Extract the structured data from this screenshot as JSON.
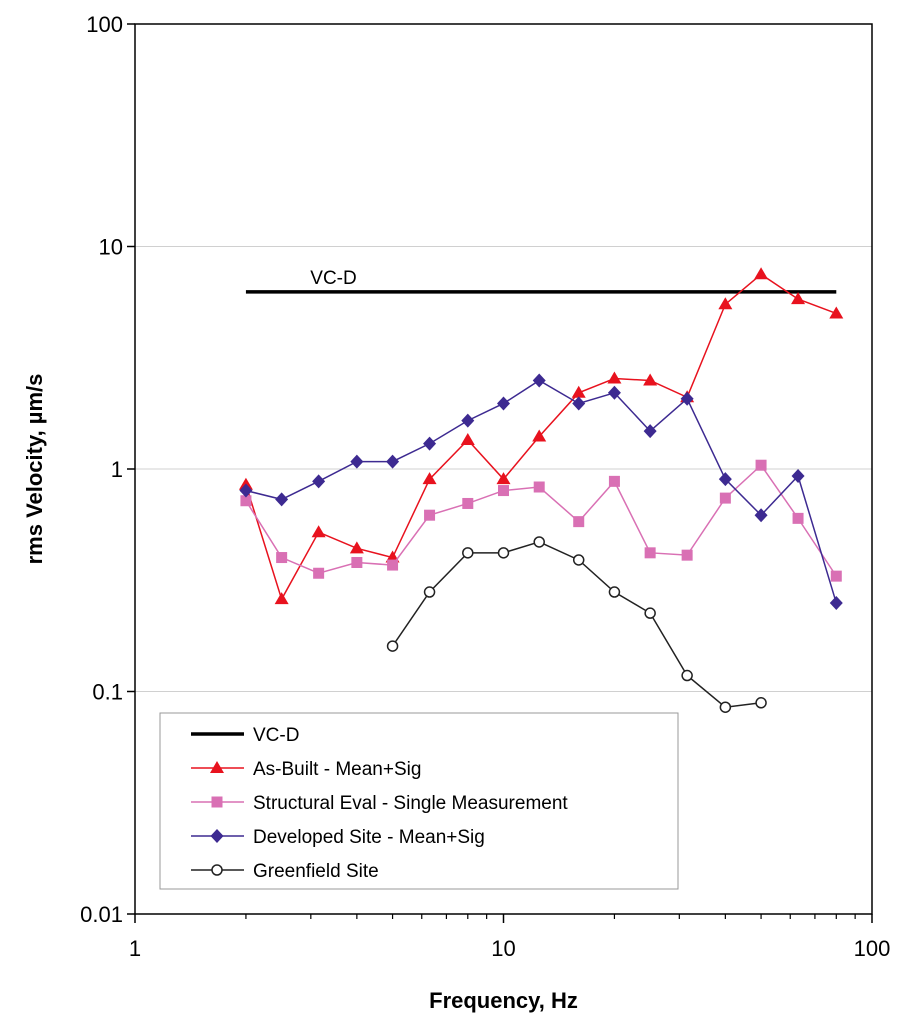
{
  "chart_data": {
    "type": "line",
    "title": "",
    "xlabel": "Frequency, Hz",
    "ylabel": "rms Velocity,  µm/s",
    "xscale": "log",
    "yscale": "log",
    "xlim": [
      1,
      100
    ],
    "ylim": [
      0.01,
      100
    ],
    "x_ticks": [
      "1",
      "10",
      "100"
    ],
    "y_ticks": [
      "0.01",
      "0.1",
      "1",
      "10",
      "100"
    ],
    "grid": "horizontal major gridlines",
    "legend_position": "bottom-left",
    "annotation": "VC-D",
    "series": [
      {
        "name": "VC-D",
        "color": "#000000",
        "marker": "none",
        "x": [
          2,
          80
        ],
        "y": [
          6.25,
          6.25
        ]
      },
      {
        "name": "As-Built - Mean+Sig",
        "color": "#e8121e",
        "marker": "triangle",
        "x": [
          2,
          2.5,
          3.15,
          4,
          5,
          6.3,
          8,
          10,
          12.5,
          16,
          20,
          25,
          31.5,
          40,
          50,
          63,
          80
        ],
        "y": [
          0.85,
          0.26,
          0.52,
          0.44,
          0.4,
          0.9,
          1.35,
          0.9,
          1.4,
          2.2,
          2.55,
          2.5,
          2.1,
          5.5,
          7.5,
          5.8,
          5.0
        ]
      },
      {
        "name": "Structural Eval - Single Measurement",
        "color": "#d970b4",
        "marker": "square",
        "x": [
          2,
          2.5,
          3.15,
          4,
          5,
          6.3,
          8,
          10,
          12.5,
          16,
          20,
          25,
          31.5,
          40,
          50,
          63,
          80
        ],
        "y": [
          0.72,
          0.4,
          0.34,
          0.38,
          0.37,
          0.62,
          0.7,
          0.8,
          0.83,
          0.58,
          0.88,
          0.42,
          0.41,
          0.74,
          1.04,
          0.6,
          0.33
        ]
      },
      {
        "name": "Developed Site - Mean+Sig",
        "color": "#3d2a91",
        "marker": "diamond",
        "x": [
          2,
          2.5,
          3.15,
          4,
          5,
          6.3,
          8,
          10,
          12.5,
          16,
          20,
          25,
          31.5,
          40,
          50,
          63,
          80
        ],
        "y": [
          0.8,
          0.73,
          0.88,
          1.08,
          1.08,
          1.3,
          1.65,
          1.97,
          2.5,
          1.97,
          2.2,
          1.48,
          2.07,
          0.9,
          0.62,
          0.93,
          0.25
        ]
      },
      {
        "name": "Greenfield Site",
        "color": "#222222",
        "marker": "open-circle",
        "x": [
          5,
          6.3,
          8,
          10,
          12.5,
          16,
          20,
          25,
          31.5,
          40,
          50
        ],
        "y": [
          0.16,
          0.28,
          0.42,
          0.42,
          0.47,
          0.39,
          0.28,
          0.225,
          0.118,
          0.085,
          0.089
        ]
      }
    ]
  }
}
